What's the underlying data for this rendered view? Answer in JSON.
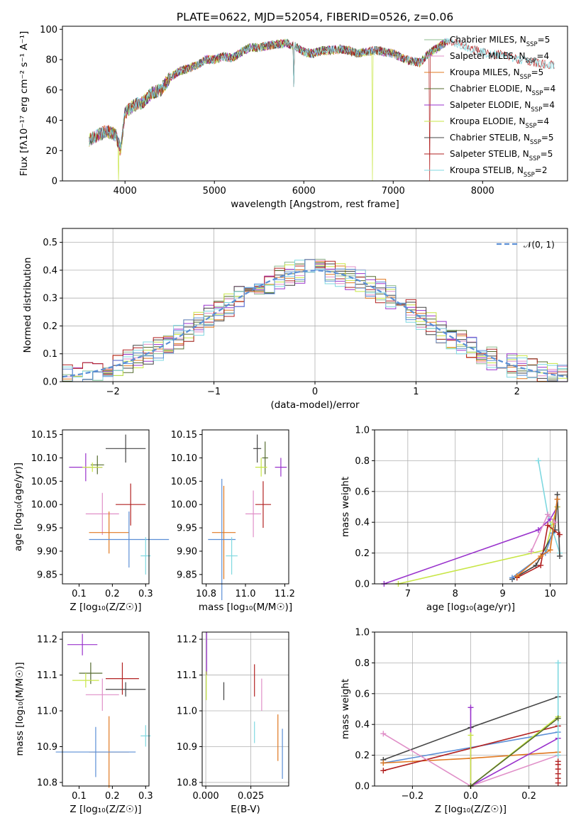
{
  "title": "PLATE=0622, MJD=52054, FIBERID=0526, z=0.06",
  "colors": {
    "chabrier_miles": "#8fbc8f",
    "salpeter_miles": "#e08fc8",
    "kroupa_miles": "#e07820",
    "chabrier_elodie": "#556b2f",
    "salpeter_elodie": "#9932cc",
    "kroupa_elodie": "#c8e646",
    "chabrier_stelib": "#444444",
    "salpeter_stelib": "#b22222",
    "kroupa_stelib": "#7fd8e0",
    "normal": "#5b8fd6",
    "grid": "#b0b0b0"
  },
  "chart_data": [
    {
      "id": "spectrum",
      "type": "line",
      "title": "PLATE=0622, MJD=52054, FIBERID=0526, z=0.06",
      "xlabel": "wavelength [Angstrom, rest frame]",
      "ylabel": "Flux [f_λ10^-17 erg cm^-2 s^-1 A^-1]",
      "xlim": [
        3300,
        8950
      ],
      "ylim": [
        0,
        102
      ],
      "xticks": [
        4000,
        5000,
        6000,
        7000,
        8000
      ],
      "yticks": [
        0,
        20,
        40,
        60,
        80,
        100
      ],
      "legend_position": "top-right",
      "legend": [
        "Chabrier MILES, N_SSP=5",
        "Salpeter MILES, N_SSP=4",
        "Kroupa MILES, N_SSP=5",
        "Chabrier ELODIE, N_SSP=4",
        "Salpeter ELODIE, N_SSP=4",
        "Kroupa ELODIE, N_SSP=4",
        "Chabrier STELIB, N_SSP=5",
        "Salpeter STELIB, N_SSP=5",
        "Kroupa STELIB, N_SSP=2"
      ],
      "continuum": {
        "x": [
          3600,
          3700,
          3800,
          3900,
          3950,
          4000,
          4100,
          4200,
          4300,
          4400,
          4500,
          4600,
          4700,
          4800,
          4900,
          5000,
          5100,
          5200,
          5300,
          5400,
          5500,
          5600,
          5700,
          5800,
          5900,
          6000,
          6100,
          6200,
          6300,
          6400,
          6500,
          6600,
          6700,
          6800,
          6900,
          7000,
          7100,
          7200,
          7300,
          7400,
          7500,
          7600,
          7700,
          7800,
          7900,
          8000,
          8100,
          8200,
          8300,
          8400,
          8500,
          8600,
          8700,
          8800
        ],
        "y": [
          27,
          30,
          33,
          30,
          20,
          45,
          50,
          52,
          58,
          60,
          68,
          72,
          74,
          76,
          80,
          80,
          82,
          81,
          85,
          88,
          88,
          89,
          90,
          91,
          89,
          85,
          84,
          86,
          86,
          87,
          86,
          84,
          85,
          86,
          85,
          84,
          81,
          79,
          78,
          84,
          88,
          92,
          91,
          89,
          87,
          85,
          83,
          84,
          82,
          80,
          79,
          78,
          77,
          76
        ]
      },
      "dips": [
        {
          "x": 3930,
          "to": 0,
          "series": "kroupa_elodie"
        },
        {
          "x": 5890,
          "to": 62,
          "series": "all"
        },
        {
          "x": 6770,
          "to": 0,
          "series": "kroupa_elodie"
        },
        {
          "x": 7410,
          "to": 0,
          "series": "salpeter_stelib"
        }
      ]
    },
    {
      "id": "residuals",
      "type": "area",
      "xlabel": "(data-model)/error",
      "ylabel": "Normed distribution",
      "xlim": [
        -2.5,
        2.5
      ],
      "ylim": [
        0,
        0.55
      ],
      "xticks": [
        -2,
        -1,
        0,
        1,
        2
      ],
      "yticks": [
        0.0,
        0.1,
        0.2,
        0.3,
        0.4,
        0.5
      ],
      "legend": [
        "𝒩(0, 1)"
      ],
      "legend_position": "top-right",
      "bin_width": 0.1,
      "noise_seed": 7,
      "grid": true
    },
    {
      "id": "age_vs_Z",
      "type": "scatter",
      "xlabel": "Z [log10(Z/Z☉)]",
      "ylabel": "age  [log10(age/yr)]",
      "xlim": [
        0.05,
        0.31
      ],
      "ylim": [
        9.83,
        10.16
      ],
      "xticks": [
        0.1,
        0.2,
        0.3
      ],
      "yticks": [
        9.85,
        9.9,
        9.95,
        10.0,
        10.05,
        10.1,
        10.15
      ],
      "points": [
        {
          "s": "chabrier_stelib",
          "x": 0.24,
          "y": 10.12,
          "xe": 0.06,
          "ye": 0.03
        },
        {
          "s": "salpeter_elodie",
          "x": 0.12,
          "y": 10.08,
          "xe": 0.05,
          "ye": 0.03
        },
        {
          "s": "chabrier_elodie",
          "x": 0.155,
          "y": 10.085,
          "xe": 0.02,
          "ye": 0.02
        },
        {
          "s": "kroupa_elodie",
          "x": 0.14,
          "y": 10.08,
          "xe": 0.03,
          "ye": 0.01
        },
        {
          "s": "salpeter_stelib",
          "x": 0.255,
          "y": 10.0,
          "xe": 0.045,
          "ye": 0.045
        },
        {
          "s": "salpeter_miles",
          "x": 0.17,
          "y": 9.98,
          "xe": 0.05,
          "ye": 0.045
        },
        {
          "s": "kroupa_miles",
          "x": 0.19,
          "y": 9.94,
          "xe": 0.06,
          "ye": 0.045
        },
        {
          "s": "normal",
          "x": 0.25,
          "y": 9.925,
          "xe": 0.12,
          "ye": 0.06
        },
        {
          "s": "kroupa_stelib",
          "x": 0.3,
          "y": 9.89,
          "xe": 0.015,
          "ye": 0.04
        }
      ]
    },
    {
      "id": "age_vs_mass",
      "type": "scatter",
      "xlabel": "mass [log10(M/M☉)]",
      "ylabel": "",
      "xlim": [
        10.78,
        11.22
      ],
      "ylim": [
        9.83,
        10.16
      ],
      "xticks": [
        10.8,
        11.0,
        11.2
      ],
      "yticks": [
        9.85,
        9.9,
        9.95,
        10.0,
        10.05,
        10.1,
        10.15
      ],
      "points": [
        {
          "s": "chabrier_stelib",
          "x": 11.06,
          "y": 10.12,
          "xe": 0.02,
          "ye": 0.03
        },
        {
          "s": "chabrier_elodie",
          "x": 11.1,
          "y": 10.1,
          "xe": 0.015,
          "ye": 0.035
        },
        {
          "s": "kroupa_elodie",
          "x": 11.08,
          "y": 10.08,
          "xe": 0.03,
          "ye": 0.02
        },
        {
          "s": "salpeter_elodie",
          "x": 11.18,
          "y": 10.08,
          "xe": 0.03,
          "ye": 0.02
        },
        {
          "s": "salpeter_stelib",
          "x": 11.09,
          "y": 10.0,
          "xe": 0.04,
          "ye": 0.05
        },
        {
          "s": "salpeter_miles",
          "x": 11.04,
          "y": 9.98,
          "xe": 0.04,
          "ye": 0.05
        },
        {
          "s": "kroupa_miles",
          "x": 10.89,
          "y": 9.94,
          "xe": 0.06,
          "ye": 0.1
        },
        {
          "s": "normal",
          "x": 10.88,
          "y": 9.925,
          "xe": 0.07,
          "ye": 0.13
        },
        {
          "s": "kroupa_stelib",
          "x": 10.93,
          "y": 9.89,
          "xe": 0.03,
          "ye": 0.04
        }
      ]
    },
    {
      "id": "weight_vs_age",
      "type": "line",
      "xlabel": "age  [log10(age/yr)]",
      "ylabel": "mass weight",
      "xlim": [
        6.3,
        10.35
      ],
      "ylim": [
        0,
        1.0
      ],
      "xticks": [
        7,
        8,
        9,
        10
      ],
      "yticks": [
        0.0,
        0.2,
        0.4,
        0.6,
        0.8,
        1.0
      ],
      "grid": true,
      "series": [
        {
          "s": "kroupa_stelib",
          "x": [
            9.75,
            9.95,
            10.2
          ],
          "y": [
            0.8,
            0.45,
            0.2
          ]
        },
        {
          "s": "salpeter_elodie",
          "x": [
            6.5,
            9.75,
            10.0,
            10.15
          ],
          "y": [
            0.0,
            0.35,
            0.42,
            0.5
          ]
        },
        {
          "s": "kroupa_elodie",
          "x": [
            6.8,
            9.9,
            10.05,
            10.15
          ],
          "y": [
            0.0,
            0.22,
            0.4,
            0.5
          ]
        },
        {
          "s": "chabrier_stelib",
          "x": [
            9.2,
            9.7,
            10.1,
            10.15,
            10.2
          ],
          "y": [
            0.03,
            0.12,
            0.35,
            0.58,
            0.18
          ]
        },
        {
          "s": "salpeter_stelib",
          "x": [
            9.3,
            9.8,
            9.95,
            10.2
          ],
          "y": [
            0.04,
            0.12,
            0.38,
            0.32
          ]
        },
        {
          "s": "normal",
          "x": [
            9.2,
            9.9,
            10.05,
            10.15
          ],
          "y": [
            0.04,
            0.2,
            0.33,
            0.55
          ]
        },
        {
          "s": "kroupa_miles",
          "x": [
            9.3,
            9.8,
            10.0,
            10.15
          ],
          "y": [
            0.05,
            0.18,
            0.22,
            0.55
          ]
        },
        {
          "s": "salpeter_miles",
          "x": [
            9.6,
            9.95,
            10.1
          ],
          "y": [
            0.21,
            0.45,
            0.4
          ]
        }
      ]
    },
    {
      "id": "mass_vs_Z",
      "type": "scatter",
      "xlabel": "Z [log10(Z/Z☉)]",
      "ylabel": "mass [log10(M/M☉)]",
      "xlim": [
        0.05,
        0.31
      ],
      "ylim": [
        10.79,
        11.22
      ],
      "xticks": [
        0.1,
        0.2,
        0.3
      ],
      "yticks": [
        10.8,
        10.9,
        11.0,
        11.1,
        11.2
      ],
      "points": [
        {
          "s": "salpeter_elodie",
          "x": 0.11,
          "y": 11.185,
          "xe": 0.045,
          "ye": 0.03
        },
        {
          "s": "chabrier_elodie",
          "x": 0.135,
          "y": 11.105,
          "xe": 0.035,
          "ye": 0.03
        },
        {
          "s": "kroupa_elodie",
          "x": 0.12,
          "y": 11.085,
          "xe": 0.04,
          "ye": 0.02
        },
        {
          "s": "salpeter_stelib",
          "x": 0.23,
          "y": 11.09,
          "xe": 0.05,
          "ye": 0.045
        },
        {
          "s": "chabrier_stelib",
          "x": 0.24,
          "y": 11.06,
          "xe": 0.06,
          "ye": 0.02
        },
        {
          "s": "salpeter_miles",
          "x": 0.17,
          "y": 11.045,
          "xe": 0.05,
          "ye": 0.045
        },
        {
          "s": "kroupa_miles",
          "x": 0.19,
          "y": 10.885,
          "xe": 0.06,
          "ye": 0.1
        },
        {
          "s": "normal",
          "x": 0.15,
          "y": 10.885,
          "xe": 0.12,
          "ye": 0.07
        },
        {
          "s": "kroupa_stelib",
          "x": 0.3,
          "y": 10.93,
          "xe": 0.015,
          "ye": 0.03
        }
      ]
    },
    {
      "id": "mass_vs_ebv",
      "type": "scatter",
      "xlabel": "E(B-V)",
      "ylabel": "",
      "xlim": [
        -0.002,
        0.046
      ],
      "ylim": [
        10.79,
        11.22
      ],
      "xticks": [
        0.0,
        0.025
      ],
      "yticks": [
        10.8,
        10.9,
        11.0,
        11.1,
        11.2
      ],
      "grid": true,
      "points": [
        {
          "s": "salpeter_elodie",
          "x": 0.0005,
          "y": 11.16,
          "xe": 0,
          "ye": 0.06
        },
        {
          "s": "kroupa_elodie",
          "x": 0.0003,
          "y": 11.07,
          "xe": 0,
          "ye": 0.04
        },
        {
          "s": "chabrier_stelib",
          "x": 0.01,
          "y": 11.055,
          "xe": 0,
          "ye": 0.025
        },
        {
          "s": "salpeter_stelib",
          "x": 0.027,
          "y": 11.085,
          "xe": 0,
          "ye": 0.045
        },
        {
          "s": "salpeter_miles",
          "x": 0.031,
          "y": 11.045,
          "xe": 0,
          "ye": 0.045
        },
        {
          "s": "kroupa_stelib",
          "x": 0.027,
          "y": 10.94,
          "xe": 0,
          "ye": 0.03
        },
        {
          "s": "kroupa_miles",
          "x": 0.04,
          "y": 10.925,
          "xe": 0,
          "ye": 0.065
        },
        {
          "s": "normal",
          "x": 0.0425,
          "y": 10.88,
          "xe": 0,
          "ye": 0.07
        }
      ]
    },
    {
      "id": "weight_vs_Z",
      "type": "line",
      "xlabel": "Z [log10(Z/Z☉)]",
      "ylabel": "mass weight",
      "xlim": [
        -0.33,
        0.33
      ],
      "ylim": [
        0,
        1.0
      ],
      "xticks": [
        -0.2,
        0.0,
        0.2
      ],
      "yticks": [
        0.0,
        0.2,
        0.4,
        0.6,
        0.8,
        1.0
      ],
      "grid": true,
      "series": [
        {
          "s": "chabrier_stelib",
          "x": [
            -0.3,
            0.0,
            0.3
          ],
          "y": [
            0.17,
            0.38,
            0.58
          ]
        },
        {
          "s": "normal",
          "x": [
            -0.3,
            0.3
          ],
          "y": [
            0.15,
            0.35
          ]
        },
        {
          "s": "kroupa_miles",
          "x": [
            -0.3,
            0.0,
            0.3
          ],
          "y": [
            0.15,
            0.18,
            0.22
          ]
        },
        {
          "s": "salpeter_stelib",
          "x": [
            -0.3,
            0.3
          ],
          "y": [
            0.1,
            0.39
          ]
        },
        {
          "s": "salpeter_miles",
          "x": [
            -0.3,
            0.0,
            0.3
          ],
          "y": [
            0.34,
            0.0,
            0.2
          ]
        },
        {
          "s": "salpeter_elodie",
          "x": [
            0.0,
            0.0,
            0.3
          ],
          "y": [
            0.51,
            0.0,
            0.31
          ]
        },
        {
          "s": "kroupa_elodie",
          "x": [
            0.0,
            0.0,
            0.3
          ],
          "y": [
            0.33,
            0.0,
            0.45
          ]
        },
        {
          "s": "kroupa_stelib",
          "x": [
            0.3,
            0.3
          ],
          "y": [
            0.8,
            0.2
          ]
        },
        {
          "s": "chabrier_elodie",
          "x": [
            0.0,
            0.3
          ],
          "y": [
            0.0,
            0.44
          ]
        }
      ],
      "stack_points": {
        "x": 0.3,
        "y": [
          0.02,
          0.05,
          0.08,
          0.11,
          0.14,
          0.16
        ]
      }
    }
  ]
}
